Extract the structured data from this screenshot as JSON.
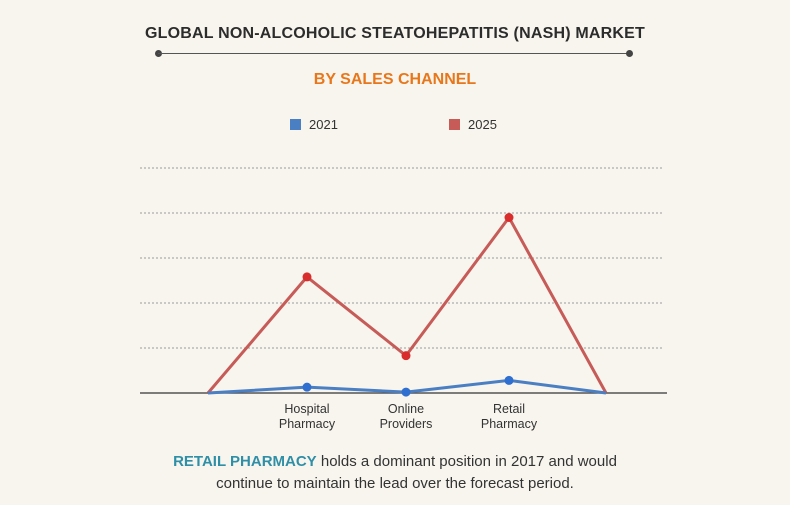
{
  "header": {
    "title": "GLOBAL NON-ALCOHOLIC STEATOHEPATITIS (NASH) MARKET",
    "subtitle": "BY SALES CHANNEL"
  },
  "footer": {
    "highlight": "RETAIL PHARMACY",
    "line1_rest": " holds a dominant position in 2017 and would",
    "line2": "continue to maintain the lead over the forecast period."
  },
  "colors": {
    "accent_orange": "#e8771b",
    "highlight_teal": "#2f8fa6",
    "series_2021": "#4a7fc3",
    "series_2025": "#c65b58",
    "marker_2021": "#2f6fd0",
    "marker_2025": "#d92c2c"
  },
  "chart_data": {
    "type": "line",
    "title": "GLOBAL NON-ALCOHOLIC STEATOHEPATITIS (NASH) MARKET",
    "subtitle": "BY SALES CHANNEL",
    "categories": [
      "",
      "Hospital Pharmacy",
      "Online Providers",
      "Retail Pharmacy",
      ""
    ],
    "category_lines": [
      [],
      [
        "Hospital",
        "Pharmacy"
      ],
      [
        "Online",
        "Providers"
      ],
      [
        "Retail",
        "Pharmacy"
      ],
      []
    ],
    "series": [
      {
        "name": "2021",
        "values": [
          0,
          1.3,
          0.2,
          2.8,
          0
        ],
        "markers": [
          false,
          true,
          true,
          true,
          false
        ]
      },
      {
        "name": "2025",
        "values": [
          0,
          25.8,
          8.3,
          39.0,
          0
        ],
        "markers": [
          false,
          true,
          true,
          true,
          false
        ]
      }
    ],
    "ylim": [
      0,
      50
    ],
    "gridlines": [
      10,
      20,
      30,
      40,
      50
    ],
    "grid": true,
    "legend_position": "top-center",
    "xlabel": "",
    "ylabel": ""
  }
}
